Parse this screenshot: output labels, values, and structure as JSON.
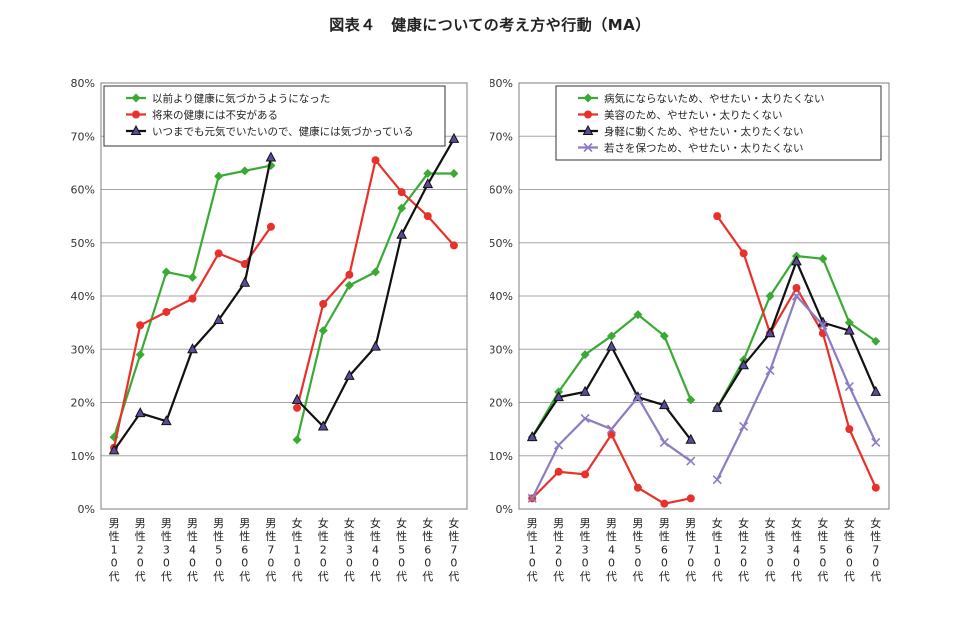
{
  "title": "図表４　健康についての考え方や行動（MA）",
  "chart_data": [
    {
      "type": "line",
      "categories": [
        "男性10代",
        "男性20代",
        "男性30代",
        "男性40代",
        "男性50代",
        "男性60代",
        "男性70代",
        "女性10代",
        "女性20代",
        "女性30代",
        "女性40代",
        "女性50代",
        "女性60代",
        "女性70代"
      ],
      "category_labels": [
        "男\n性\n1\n0\n代",
        "男\n性\n2\n0\n代",
        "男\n性\n3\n0\n代",
        "男\n性\n4\n0\n代",
        "男\n性\n5\n0\n代",
        "男\n性\n6\n0\n代",
        "男\n性\n7\n0\n代",
        "女\n性\n1\n0\n代",
        "女\n性\n2\n0\n代",
        "女\n性\n3\n0\n代",
        "女\n性\n4\n0\n代",
        "女\n性\n5\n0\n代",
        "女\n性\n6\n0\n代",
        "女\n性\n7\n0\n代"
      ],
      "ylim": [
        0,
        80
      ],
      "yticks": [
        "0%",
        "10%",
        "20%",
        "30%",
        "40%",
        "50%",
        "60%",
        "70%",
        "80%"
      ],
      "grid": true,
      "legend_position": "top-left",
      "series": [
        {
          "name": "以前より健康に気づかうようになった",
          "color": "#3aaa35",
          "marker": "diamond",
          "values": [
            13.5,
            29,
            44.5,
            43.5,
            62.5,
            63.5,
            64.5,
            13,
            33.5,
            42,
            44.5,
            56.5,
            63,
            63
          ]
        },
        {
          "name": "将来の健康には不安がある",
          "color": "#e8312a",
          "marker": "circle",
          "values": [
            11.5,
            34.5,
            37,
            39.5,
            48,
            46,
            53,
            19,
            38.5,
            44,
            65.5,
            59.5,
            55,
            49.5
          ]
        },
        {
          "name": "いつまでも元気でいたいので、健康には気づかっている",
          "color": "#111111",
          "marker": "triangle",
          "values": [
            11,
            18,
            16.5,
            30,
            35.5,
            42.5,
            66,
            20.5,
            15.5,
            25,
            30.5,
            51.5,
            61,
            69.5
          ]
        }
      ]
    },
    {
      "type": "line",
      "categories": [
        "男性10代",
        "男性20代",
        "男性30代",
        "男性40代",
        "男性50代",
        "男性60代",
        "男性70代",
        "女性10代",
        "女性20代",
        "女性30代",
        "女性40代",
        "女性50代",
        "女性60代",
        "女性70代"
      ],
      "category_labels": [
        "男\n性\n1\n0\n代",
        "男\n性\n2\n0\n代",
        "男\n性\n3\n0\n代",
        "男\n性\n4\n0\n代",
        "男\n性\n5\n0\n代",
        "男\n性\n6\n0\n代",
        "男\n性\n7\n0\n代",
        "女\n性\n1\n0\n代",
        "女\n性\n2\n0\n代",
        "女\n性\n3\n0\n代",
        "女\n性\n4\n0\n代",
        "女\n性\n5\n0\n代",
        "女\n性\n6\n0\n代",
        "女\n性\n7\n0\n代"
      ],
      "ylim": [
        0,
        80
      ],
      "yticks": [
        "0%",
        "10%",
        "20%",
        "30%",
        "40%",
        "50%",
        "60%",
        "70%",
        "80%"
      ],
      "grid": true,
      "legend_position": "top-center",
      "series": [
        {
          "name": "病気にならないため、やせたい・太りたくない",
          "color": "#3aaa35",
          "marker": "diamond",
          "values": [
            13.5,
            22,
            29,
            32.5,
            36.5,
            32.5,
            20.5,
            19,
            28,
            40,
            47.5,
            47,
            35,
            31.5
          ]
        },
        {
          "name": "美容のため、やせたい・太りたくない",
          "color": "#e8312a",
          "marker": "circle",
          "values": [
            2,
            7,
            6.5,
            14,
            4,
            1,
            2,
            55,
            48,
            33,
            41.5,
            33,
            15,
            4
          ]
        },
        {
          "name": "身軽に動くため、やせたい・太りたくない",
          "color": "#111111",
          "marker": "triangle",
          "values": [
            13.5,
            21,
            22,
            30.5,
            21,
            19.5,
            13,
            19,
            27,
            33,
            46.5,
            35,
            33.5,
            22
          ]
        },
        {
          "name": "若さを保つため、やせたい・太りたくない",
          "color": "#8e7cc3",
          "marker": "x",
          "values": [
            2,
            12,
            17,
            15,
            21,
            12.5,
            9,
            5.5,
            15.5,
            26,
            40,
            34.5,
            23,
            12.5
          ]
        }
      ]
    }
  ]
}
